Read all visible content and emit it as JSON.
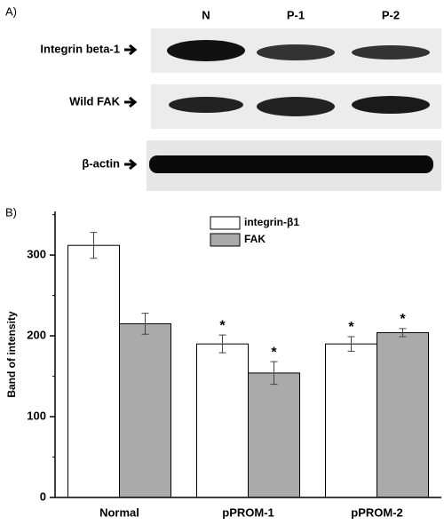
{
  "panel_a": {
    "label": "A)",
    "lanes": [
      "N",
      "P-1",
      "P-2"
    ],
    "rows": [
      "Integrin beta-1",
      "Wild FAK",
      "β-actin"
    ]
  },
  "chart_data": {
    "type": "bar",
    "panel_label": "B)",
    "ylabel": "Band of intensity",
    "categories": [
      "Normal",
      "pPROM-1",
      "pPROM-2"
    ],
    "series": [
      {
        "name": "integrin-β1",
        "color": "#ffffff",
        "values": [
          312,
          190,
          190
        ],
        "errors": [
          16,
          11,
          9
        ],
        "significance": [
          null,
          "*",
          "*"
        ]
      },
      {
        "name": "FAK",
        "color": "#aaaaaa",
        "values": [
          215,
          154,
          204
        ],
        "errors": [
          13,
          14,
          5
        ],
        "significance": [
          null,
          "*",
          "*"
        ]
      }
    ],
    "ylim": [
      0,
      354
    ],
    "yticks": [
      0,
      100,
      200,
      300
    ],
    "minor_yticks": [
      50,
      150,
      250,
      350
    ],
    "legend": "upper center"
  }
}
